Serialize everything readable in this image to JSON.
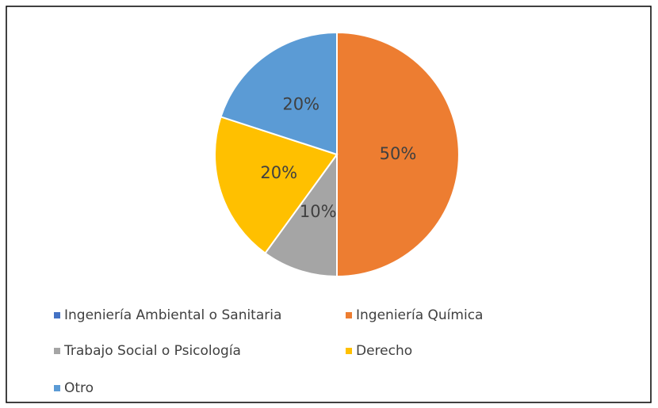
{
  "chart_data": {
    "type": "pie",
    "categories": [
      "Ingeniería Ambiental o Sanitaria",
      "Ingeniería Química",
      "Trabajo Social o Psicología",
      "Derecho",
      "Otro"
    ],
    "values": [
      0,
      50,
      10,
      20,
      20
    ],
    "value_labels": [
      null,
      "50%",
      "10%",
      "20%",
      "20%"
    ],
    "colors": [
      "#4472c4",
      "#ed7d31",
      "#a5a5a5",
      "#ffc000",
      "#5b9bd5"
    ],
    "legend": "bottom"
  }
}
